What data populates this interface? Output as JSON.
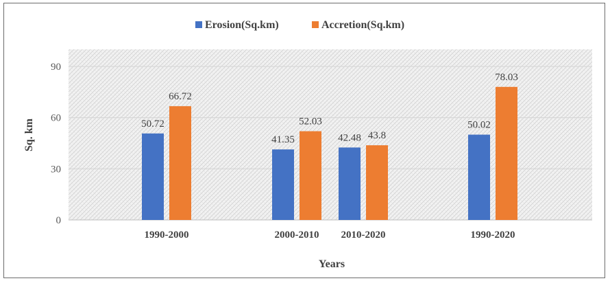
{
  "chart_data": {
    "type": "bar",
    "categories": [
      "1990-2000",
      "2000-2010",
      "2010-2020",
      "1990-2020"
    ],
    "series": [
      {
        "name": "Erosion(Sq.km)",
        "values": [
          50.72,
          41.35,
          42.48,
          50.02
        ],
        "color": "#4472c4"
      },
      {
        "name": "Accretion(Sq.km)",
        "values": [
          66.72,
          52.03,
          43.8,
          78.03
        ],
        "color": "#ed7d31"
      }
    ],
    "data_labels": [
      [
        "50.72",
        "41.35",
        "42.48",
        "50.02"
      ],
      [
        "66.72",
        "52.03",
        "43.8",
        "78.03"
      ]
    ],
    "xlabel": "Years",
    "ylabel": "Sq. km",
    "ylim": [
      0,
      90
    ],
    "yticks": [
      0,
      30,
      60,
      90
    ],
    "ytick_labels": [
      "0",
      "30",
      "60",
      "90"
    ],
    "grid": true,
    "legend_position": "top-center"
  }
}
